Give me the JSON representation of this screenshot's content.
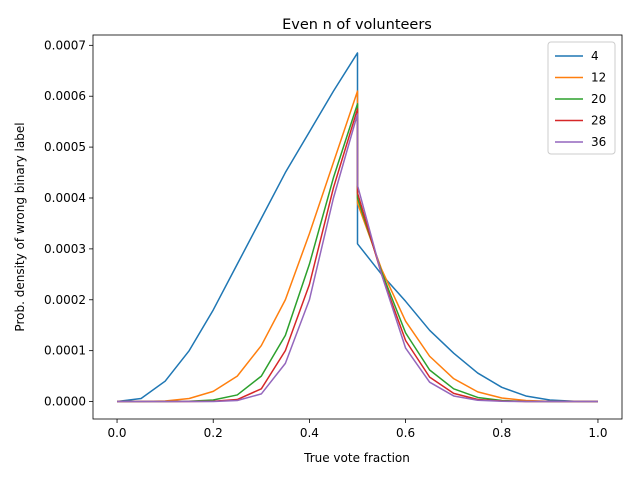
{
  "chart_data": {
    "type": "line",
    "title": "Even n of volunteers",
    "xlabel": "True vote fraction",
    "ylabel": "Prob. density of wrong binary label",
    "xlim": [
      -0.05,
      1.05
    ],
    "ylim": [
      -3.43e-05,
      0.0007203
    ],
    "x_ticks": [
      0.0,
      0.2,
      0.4,
      0.6,
      0.8,
      1.0
    ],
    "x_tick_labels": [
      "0.0",
      "0.2",
      "0.4",
      "0.6",
      "0.8",
      "1.0"
    ],
    "y_ticks": [
      0.0,
      0.0001,
      0.0002,
      0.0003,
      0.0004,
      0.0005,
      0.0006,
      0.0007
    ],
    "y_tick_labels": [
      "0.0000",
      "0.0001",
      "0.0002",
      "0.0003",
      "0.0004",
      "0.0005",
      "0.0006",
      "0.0007"
    ],
    "grid": false,
    "legend_position": "top-right",
    "x": [
      0.0,
      0.05,
      0.1,
      0.15,
      0.2,
      0.25,
      0.3,
      0.35,
      0.4,
      0.45,
      0.5,
      0.5,
      0.55,
      0.6,
      0.65,
      0.7,
      0.75,
      0.8,
      0.85,
      0.9,
      0.95,
      1.0
    ],
    "series": [
      {
        "name": "4",
        "color": "#1f77b4",
        "values": [
          0.0,
          6e-06,
          4e-05,
          0.0001,
          0.00018,
          0.00027,
          0.00036,
          0.00045,
          0.00053,
          0.00061,
          0.000685,
          0.00031,
          0.00025,
          0.000197,
          0.00014,
          9.5e-05,
          5.6e-05,
          2.8e-05,
          1.1e-05,
          3e-06,
          5e-07,
          0.0
        ]
      },
      {
        "name": "12",
        "color": "#ff7f0e",
        "values": [
          0.0,
          0.0,
          1e-06,
          6e-06,
          2e-05,
          5e-05,
          0.00011,
          0.0002,
          0.00033,
          0.00047,
          0.00061,
          0.00039,
          0.00026,
          0.000158,
          8.9e-05,
          4.5e-05,
          1.9e-05,
          7e-06,
          2e-06,
          3e-07,
          0.0,
          0.0
        ]
      },
      {
        "name": "20",
        "color": "#2ca02c",
        "values": [
          0.0,
          0.0,
          0.0,
          5e-07,
          3e-06,
          1.3e-05,
          5e-05,
          0.00013,
          0.00027,
          0.00044,
          0.000585,
          0.0004,
          0.000255,
          0.000135,
          6.2e-05,
          2.5e-05,
          8e-06,
          2e-06,
          4e-07,
          0.0,
          0.0,
          0.0
        ]
      },
      {
        "name": "28",
        "color": "#d62728",
        "values": [
          0.0,
          0.0,
          0.0,
          0.0,
          5e-07,
          4e-06,
          2.5e-05,
          0.0001,
          0.00023,
          0.00042,
          0.000575,
          0.00041,
          0.00025,
          0.00012,
          4.8e-05,
          1.6e-05,
          4e-06,
          1e-06,
          0.0,
          0.0,
          0.0,
          0.0
        ]
      },
      {
        "name": "36",
        "color": "#9467bd",
        "values": [
          0.0,
          0.0,
          0.0,
          0.0,
          0.0,
          2e-06,
          1.5e-05,
          7.5e-05,
          0.0002,
          0.0004,
          0.000565,
          0.000425,
          0.00025,
          0.000105,
          3.8e-05,
          1.1e-05,
          2.5e-06,
          5e-07,
          0.0,
          0.0,
          0.0,
          0.0
        ]
      }
    ]
  }
}
